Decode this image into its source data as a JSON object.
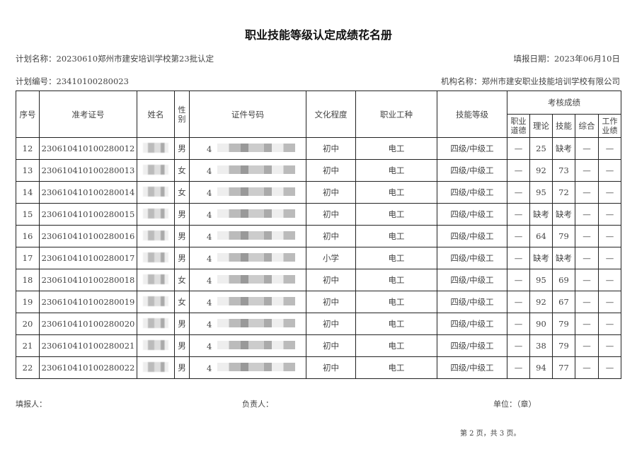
{
  "title": "职业技能等级认定成绩花名册",
  "plan_name": "计划名称：20230610郑州市建安培训学校第23批认定",
  "fill_date": "填报日期：2023年06月10日",
  "plan_no": "计划编号：23410100280023",
  "org_name": "机构名称：郑州市建安职业技能培训学校有限公司",
  "headers": {
    "seq": "序号",
    "ticket": "准考证号",
    "name": "姓名",
    "gender": "性别",
    "id": "证件号码",
    "edu": "文化程度",
    "job": "职业工种",
    "level": "技能等级",
    "scores": "考核成绩",
    "ethics": "职业道德",
    "theory": "理论",
    "skill": "技能",
    "overall": "综合",
    "work": "工作业绩"
  },
  "rows": [
    {
      "seq": "12",
      "ticket": "230610410100280012",
      "gender": "男",
      "id": "4",
      "edu": "初中",
      "job": "电工",
      "level": "四级/中级工",
      "ethics": "—",
      "theory": "25",
      "skill": "缺考",
      "overall": "—",
      "work": "—"
    },
    {
      "seq": "13",
      "ticket": "230610410100280013",
      "gender": "女",
      "id": "4",
      "edu": "初中",
      "job": "电工",
      "level": "四级/中级工",
      "ethics": "—",
      "theory": "92",
      "skill": "73",
      "overall": "—",
      "work": "—"
    },
    {
      "seq": "14",
      "ticket": "230610410100280014",
      "gender": "女",
      "id": "4",
      "edu": "初中",
      "job": "电工",
      "level": "四级/中级工",
      "ethics": "—",
      "theory": "95",
      "skill": "72",
      "overall": "—",
      "work": "—"
    },
    {
      "seq": "15",
      "ticket": "230610410100280015",
      "gender": "男",
      "id": "4",
      "edu": "初中",
      "job": "电工",
      "level": "四级/中级工",
      "ethics": "—",
      "theory": "缺考",
      "skill": "缺考",
      "overall": "—",
      "work": "—"
    },
    {
      "seq": "16",
      "ticket": "230610410100280016",
      "gender": "男",
      "id": "4",
      "edu": "初中",
      "job": "电工",
      "level": "四级/中级工",
      "ethics": "—",
      "theory": "64",
      "skill": "79",
      "overall": "—",
      "work": "—"
    },
    {
      "seq": "17",
      "ticket": "230610410100280017",
      "gender": "男",
      "id": "4",
      "edu": "小学",
      "job": "电工",
      "level": "四级/中级工",
      "ethics": "—",
      "theory": "缺考",
      "skill": "缺考",
      "overall": "—",
      "work": "—"
    },
    {
      "seq": "18",
      "ticket": "230610410100280018",
      "gender": "女",
      "id": "4",
      "edu": "初中",
      "job": "电工",
      "level": "四级/中级工",
      "ethics": "—",
      "theory": "95",
      "skill": "69",
      "overall": "—",
      "work": "—"
    },
    {
      "seq": "19",
      "ticket": "230610410100280019",
      "gender": "女",
      "id": "4",
      "edu": "初中",
      "job": "电工",
      "level": "四级/中级工",
      "ethics": "—",
      "theory": "92",
      "skill": "67",
      "overall": "—",
      "work": "—"
    },
    {
      "seq": "20",
      "ticket": "230610410100280020",
      "gender": "男",
      "id": "4",
      "edu": "初中",
      "job": "电工",
      "level": "四级/中级工",
      "ethics": "—",
      "theory": "90",
      "skill": "79",
      "overall": "—",
      "work": "—"
    },
    {
      "seq": "21",
      "ticket": "230610410100280021",
      "gender": "男",
      "id": "4",
      "edu": "初中",
      "job": "电工",
      "level": "四级/中级工",
      "ethics": "—",
      "theory": "38",
      "skill": "79",
      "overall": "—",
      "work": "—"
    },
    {
      "seq": "22",
      "ticket": "230610410100280022",
      "gender": "男",
      "id": "4",
      "edu": "初中",
      "job": "电工",
      "level": "四级/中级工",
      "ethics": "—",
      "theory": "94",
      "skill": "77",
      "overall": "—",
      "work": "—"
    }
  ],
  "footer": {
    "filler": "填报人：",
    "manager": "负责人：",
    "unit": "单位：（章）",
    "page": "第 2 页，共 3 页。"
  }
}
